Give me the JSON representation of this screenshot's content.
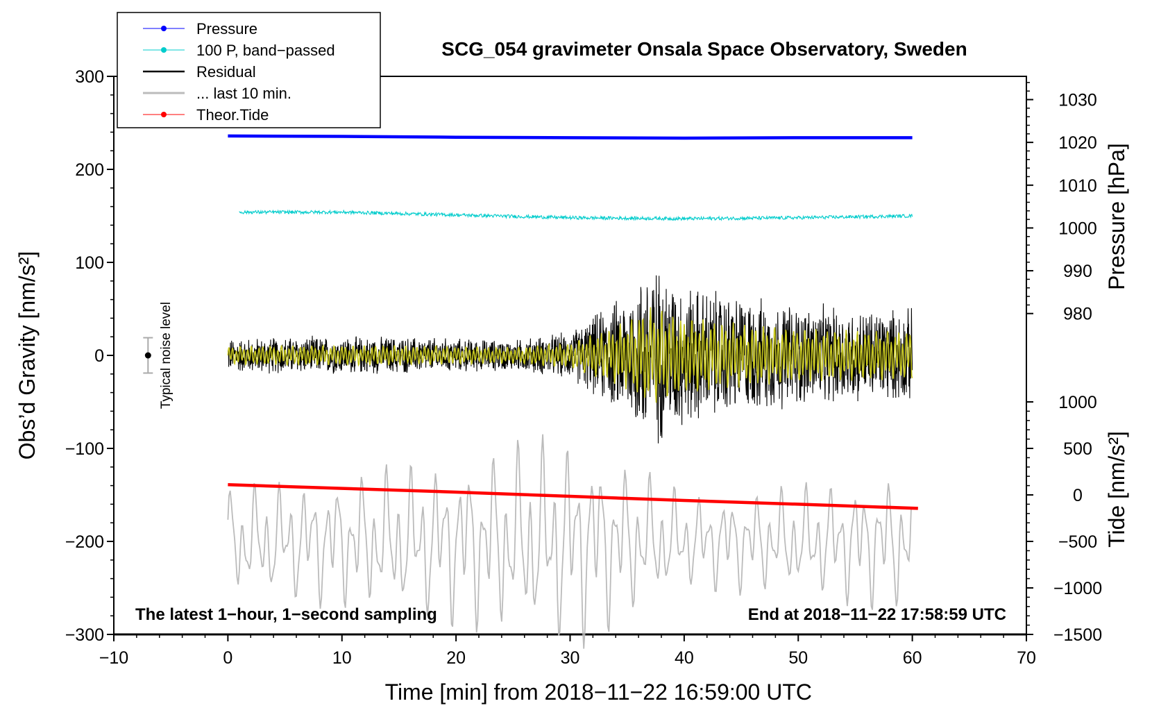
{
  "chart_data": {
    "type": "line",
    "title": "SCG_054 gravimeter Onsala Space Observatory, Sweden",
    "xlabel": "Time [min] from 2018−11−22 16:59:00 UTC",
    "ylabel_left": "Obs’d Gravity [nm/s²]",
    "ylabel_right_top": "Pressure [hPa]",
    "ylabel_right_bottom": "Tide [nm/s²]",
    "xlim": [
      -10,
      70
    ],
    "ylim": [
      -300,
      300
    ],
    "x_ticks": [
      -10,
      0,
      10,
      20,
      30,
      40,
      50,
      60,
      70
    ],
    "x_tick_labels": [
      "−10",
      "0",
      "10",
      "20",
      "30",
      "40",
      "50",
      "60",
      "70"
    ],
    "y_ticks": [
      -300,
      -200,
      -100,
      0,
      100,
      200,
      300
    ],
    "y_tick_labels": [
      "−300",
      "−200",
      "−100",
      "0",
      "100",
      "200",
      "300"
    ],
    "pressure_axis": {
      "ticks": [
        980,
        990,
        1000,
        1010,
        1020,
        1030
      ],
      "tick_labels": [
        "980",
        "990",
        "1000",
        "1010",
        "1020",
        "1030"
      ],
      "map": {
        "hpa_a": 980,
        "g_a": 45,
        "hpa_b": 1030,
        "g_b": 275
      }
    },
    "tide_axis": {
      "ticks": [
        -1500,
        -1000,
        -500,
        0,
        500,
        1000
      ],
      "tick_labels": [
        "−1500",
        "−1000",
        "−500",
        "0",
        "500",
        "1000"
      ],
      "map": {
        "tide_a": -1500,
        "g_a": -300,
        "tide_b": 1000,
        "g_b": -50
      }
    },
    "legend": [
      {
        "label": "Pressure",
        "color": "#0000ff",
        "marker": true
      },
      {
        "label": "100 P, band−passed",
        "color": "#00cccc",
        "marker": true
      },
      {
        "label": "Residual",
        "color": "#000000",
        "marker": false
      },
      {
        "label": "... last 10 min.",
        "color": "#bbbbbb",
        "marker": false
      },
      {
        "label": "Theor.Tide",
        "color": "#ff0000",
        "marker": true
      }
    ],
    "legend_position": "top-left",
    "series": [
      {
        "name": "Pressure",
        "color": "#0000ff",
        "unit": "hPa",
        "x": [
          0,
          10,
          20,
          30,
          40,
          50,
          60
        ],
        "values": [
          1021.5,
          1021.4,
          1021.2,
          1021.1,
          1021.0,
          1021.1,
          1021.1
        ]
      },
      {
        "name": "100 P, band-passed",
        "color": "#00cccc",
        "unit": "nm/s²",
        "x": [
          1,
          10,
          20,
          30,
          40,
          50,
          60
        ],
        "values": [
          154,
          154,
          151,
          148,
          147,
          148,
          150
        ]
      },
      {
        "name": "Residual",
        "color": "#000000",
        "unit": "nm/s²",
        "x": [
          0,
          5,
          10,
          15,
          20,
          25,
          30,
          35,
          37,
          40,
          45,
          50,
          55,
          60
        ],
        "values": [
          0,
          0,
          0,
          0,
          0,
          0,
          0,
          0,
          0,
          0,
          0,
          0,
          0,
          0
        ],
        "envelope": [
          20,
          22,
          22,
          22,
          20,
          18,
          28,
          75,
          110,
          85,
          70,
          60,
          55,
          55
        ]
      },
      {
        "name": "... last 10 min.",
        "color": "#bbbbbb",
        "unit": "nm/s²",
        "x": [
          0,
          10,
          20,
          30,
          40,
          50,
          60
        ],
        "values": [
          -200,
          -200,
          -200,
          -200,
          -200,
          -200,
          -200
        ],
        "amplitude": [
          45,
          55,
          70,
          90,
          40,
          45,
          60
        ]
      },
      {
        "name": "Theor.Tide",
        "color": "#ff0000",
        "unit": "nm/s²",
        "x": [
          0,
          10,
          20,
          30,
          40,
          50,
          60.5
        ],
        "values": [
          110,
          70,
          30,
          -15,
          -60,
          -100,
          -145
        ]
      }
    ],
    "noise_marker": {
      "label": "Typical noise level",
      "x": -7,
      "y": 0,
      "error": 19
    },
    "annotations": {
      "bottom_left": "The latest 1−hour, 1−second sampling",
      "bottom_right": "End at 2018−11−22 17:58:59 UTC"
    }
  }
}
